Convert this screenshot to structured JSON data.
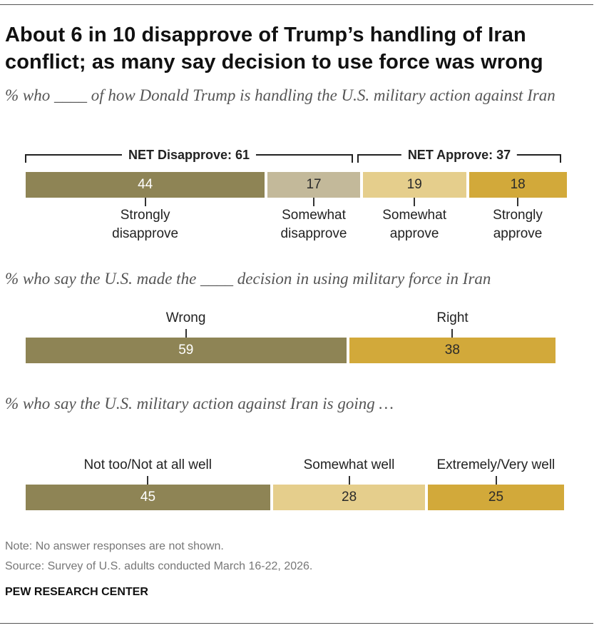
{
  "title": "About 6 in 10 disapprove of Trump’s handling of Iran conflict; as many say decision to use force was wrong",
  "colors": {
    "dark_olive": "#8e8455",
    "light_olive": "#c3b99a",
    "light_gold": "#e5ce8c",
    "gold": "#d2a93a"
  },
  "chart_data": [
    {
      "type": "bar",
      "orientation": "horizontal-stacked",
      "subtitle": "% who ____ of how Donald Trump is handling the U.S. military action against Iran",
      "categories": [
        "Strongly disapprove",
        "Somewhat disapprove",
        "Somewhat approve",
        "Strongly approve"
      ],
      "values": [
        44,
        17,
        19,
        18
      ],
      "nets": [
        {
          "label": "NET Disapprove: 61",
          "value": 61
        },
        {
          "label": "NET Approve: 37",
          "value": 37
        }
      ]
    },
    {
      "type": "bar",
      "orientation": "horizontal-stacked",
      "subtitle": "% who say the U.S. made the ____ decision in using military force in Iran",
      "categories": [
        "Wrong",
        "Right"
      ],
      "values": [
        59,
        38
      ]
    },
    {
      "type": "bar",
      "orientation": "horizontal-stacked",
      "subtitle": "% who say the U.S. military action against Iran is going …",
      "categories": [
        "Not too/Not at all well",
        "Somewhat well",
        "Extremely/Very well"
      ],
      "values": [
        45,
        28,
        25
      ]
    }
  ],
  "labels": {
    "c1": [
      "Strongly\ndisapprove",
      "Somewhat\ndisapprove",
      "Somewhat\napprove",
      "Strongly\napprove"
    ],
    "c2": [
      "Wrong",
      "Right"
    ],
    "c3": [
      "Not too/Not at all well",
      "Somewhat well",
      "Extremely/Very well"
    ]
  },
  "note": "Note: No answer responses are not shown.",
  "source": "Source: Survey of U.S. adults conducted March 16-22, 2026.",
  "brand": "PEW RESEARCH CENTER"
}
